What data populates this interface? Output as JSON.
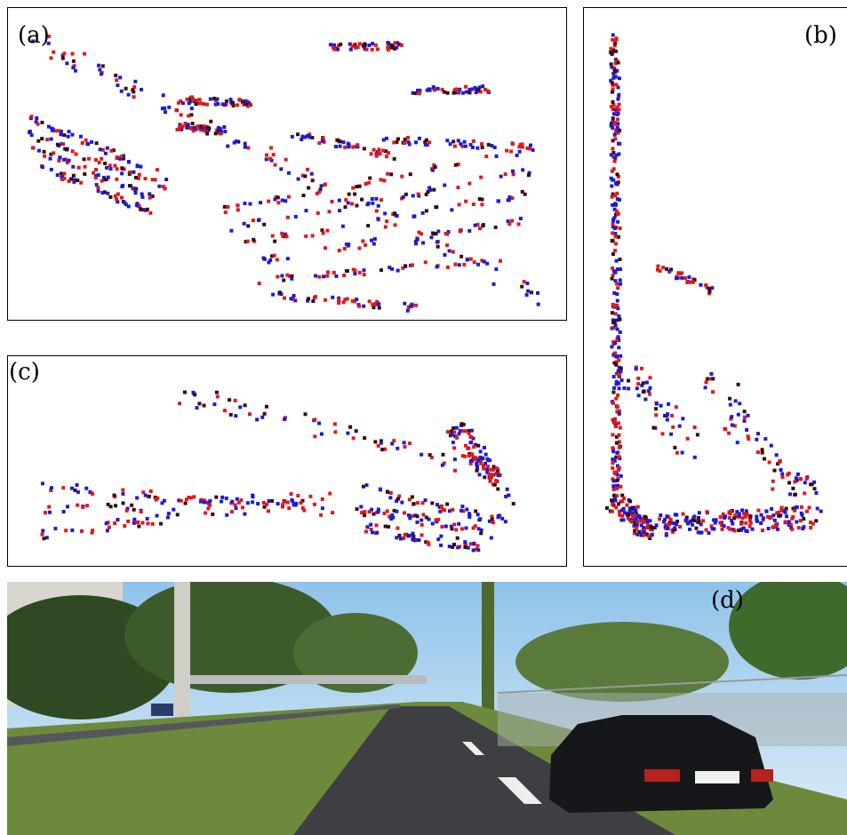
{
  "panels": {
    "a": {
      "label": "(a)"
    },
    "b": {
      "label": "(b)"
    },
    "c": {
      "label": "(c)"
    },
    "d": {
      "label": "(d)"
    }
  }
}
